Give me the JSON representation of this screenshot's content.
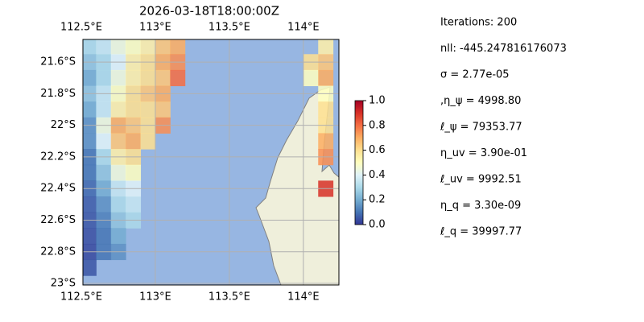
{
  "chart_data": {
    "type": "map",
    "title": "2026-03-18T18:00:00Z",
    "xlim": [
      112.511,
      114.24
    ],
    "ylim": [
      -23.01,
      -21.457
    ],
    "xticks": [
      {
        "value": 112.5,
        "label": "112.5°E"
      },
      {
        "value": 113,
        "label": "113°E"
      },
      {
        "value": 113.5,
        "label": "113.5°E"
      },
      {
        "value": 114,
        "label": "114°E"
      }
    ],
    "yticks": [
      {
        "value": -21.6,
        "label": "21.6°S"
      },
      {
        "value": -21.8,
        "label": "21.8°S"
      },
      {
        "value": -22,
        "label": "22°S"
      },
      {
        "value": -22.2,
        "label": "22.2°S"
      },
      {
        "value": -22.4,
        "label": "22.4°S"
      },
      {
        "value": -22.6,
        "label": "22.6°S"
      },
      {
        "value": -22.8,
        "label": "22.8°S"
      },
      {
        "value": -23,
        "label": "23°S"
      }
    ],
    "grid": true,
    "colormap": [
      "#313695",
      "#4575b4",
      "#74add1",
      "#abd9e9",
      "#e0f3f8",
      "#ffffbf",
      "#fee090",
      "#fdae61",
      "#f46d43",
      "#d73027",
      "#a50026"
    ],
    "clim": [
      0,
      1
    ],
    "cticks": [
      {
        "value": 0,
        "label": "0.0"
      },
      0.2,
      0.4,
      0.6,
      0.8,
      {
        "value": 1,
        "label": "1.0"
      }
    ],
    "fields": [
      {
        "lon0": 112.5,
        "lat0": -21.45,
        "step": 0.1,
        "values": [
          [
            0.3,
            0.35,
            0.45,
            0.5,
            0.55,
            0.65,
            0.7
          ],
          [
            0.25,
            0.3,
            0.4,
            0.55,
            0.6,
            0.7,
            0.75
          ],
          [
            0.2,
            0.3,
            0.45,
            0.55,
            0.6,
            0.65,
            0.8
          ],
          [
            0.25,
            0.35,
            0.5,
            0.6,
            0.65,
            0.7,
            null
          ],
          [
            0.2,
            0.35,
            0.55,
            0.6,
            0.6,
            0.65,
            null
          ],
          [
            0.15,
            0.45,
            0.7,
            0.65,
            0.6,
            0.75,
            null
          ],
          [
            0.15,
            0.4,
            0.65,
            0.7,
            0.6,
            null,
            null
          ],
          [
            0.1,
            0.3,
            0.55,
            0.6,
            null,
            null,
            null
          ],
          [
            0.1,
            0.25,
            0.45,
            0.5,
            null,
            null,
            null
          ],
          [
            0.08,
            0.2,
            0.35,
            0.4,
            null,
            null,
            null
          ],
          [
            0.06,
            0.15,
            0.3,
            0.35,
            null,
            null,
            null
          ],
          [
            0.05,
            0.12,
            0.25,
            0.3,
            null,
            null,
            null
          ],
          [
            0.04,
            0.1,
            0.2,
            null,
            null,
            null,
            null
          ],
          [
            0.03,
            0.1,
            0.15,
            null,
            null,
            null,
            null
          ],
          [
            0.05,
            null,
            null,
            null,
            null,
            null,
            null
          ]
        ]
      },
      {
        "lon0": 114.0,
        "lat0": -21.45,
        "step": 0.1,
        "values": [
          [
            null,
            0.55
          ],
          [
            0.6,
            0.65
          ],
          [
            0.5,
            0.7
          ],
          [
            null,
            0.5
          ],
          [
            null,
            0.6
          ],
          [
            null,
            0.6
          ],
          [
            null,
            0.7
          ],
          [
            null,
            0.75
          ],
          [
            null,
            null
          ],
          [
            null,
            0.9
          ]
        ]
      }
    ],
    "info": [
      "Iterations: 200",
      "nll: -445.247816176073",
      "σ = 2.77e-05",
      ",η_ψ = 4998.80",
      "ℓ_ψ = 79353.77",
      "η_uv = 3.90e-01",
      "ℓ_uv = 9992.51",
      "η_q = 3.30e-09",
      "ℓ_q = 39997.77"
    ]
  }
}
